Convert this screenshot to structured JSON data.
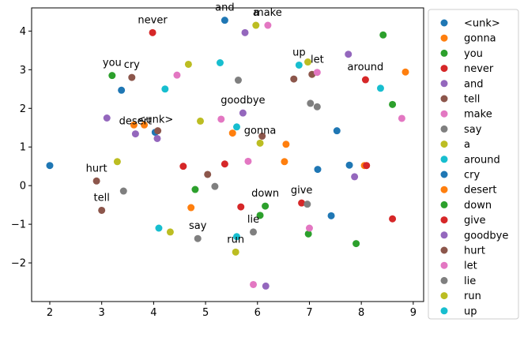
{
  "chart_data": {
    "type": "scatter",
    "title": "",
    "xlabel": "",
    "ylabel": "",
    "xlim": [
      1.65,
      9.2
    ],
    "ylim": [
      -3.0,
      4.6
    ],
    "xticks": [
      2,
      3,
      4,
      5,
      6,
      7,
      8,
      9
    ],
    "yticks": [
      -2,
      -1,
      0,
      1,
      2,
      3,
      4
    ],
    "grid": false,
    "legend_position": "outside-right",
    "series": [
      {
        "name": "<unk>",
        "color": "#1f77b4",
        "points": [
          [
            2.0,
            0.52
          ],
          [
            5.37,
            4.28
          ],
          [
            3.38,
            2.47
          ],
          [
            4.03,
            1.38
          ],
          [
            7.53,
            1.42
          ],
          [
            7.16,
            0.42
          ],
          [
            7.77,
            0.53
          ],
          [
            7.42,
            -0.78
          ]
        ]
      },
      {
        "name": "gonna",
        "color": "#ff7f0e",
        "points": [
          [
            3.62,
            1.57
          ],
          [
            3.82,
            1.57
          ],
          [
            5.52,
            1.36
          ],
          [
            6.55,
            1.07
          ],
          [
            6.52,
            0.62
          ],
          [
            8.85,
            2.94
          ],
          [
            8.06,
            0.52
          ],
          [
            4.72,
            -0.57
          ]
        ]
      },
      {
        "name": "you",
        "color": "#2ca02c",
        "points": [
          [
            3.2,
            2.85
          ],
          [
            8.42,
            3.9
          ],
          [
            8.6,
            2.1
          ],
          [
            4.8,
            -0.1
          ],
          [
            6.15,
            -0.53
          ],
          [
            6.05,
            -0.77
          ],
          [
            6.98,
            -1.25
          ],
          [
            7.9,
            -1.5
          ]
        ]
      },
      {
        "name": "never",
        "color": "#d62728",
        "points": [
          [
            3.98,
            3.96
          ],
          [
            8.08,
            2.74
          ],
          [
            4.57,
            0.5
          ],
          [
            5.37,
            0.56
          ],
          [
            8.1,
            0.52
          ],
          [
            5.68,
            -0.55
          ],
          [
            6.85,
            -0.45
          ],
          [
            8.6,
            -0.86
          ]
        ]
      },
      {
        "name": "and",
        "color": "#9467bd",
        "points": [
          [
            5.76,
            3.96
          ],
          [
            7.75,
            3.4
          ],
          [
            3.1,
            1.75
          ],
          [
            5.72,
            1.88
          ],
          [
            3.65,
            1.34
          ],
          [
            4.07,
            1.22
          ],
          [
            7.87,
            0.23
          ],
          [
            6.16,
            -2.6
          ]
        ]
      },
      {
        "name": "tell",
        "color": "#8c564b",
        "points": [
          [
            3.58,
            2.8
          ],
          [
            6.7,
            2.76
          ],
          [
            7.05,
            2.88
          ],
          [
            4.08,
            1.42
          ],
          [
            6.09,
            1.28
          ],
          [
            5.04,
            0.29
          ],
          [
            2.9,
            0.12
          ],
          [
            3.0,
            -0.64
          ]
        ]
      },
      {
        "name": "make",
        "color": "#e377c2",
        "points": [
          [
            6.2,
            4.15
          ],
          [
            4.45,
            2.86
          ],
          [
            7.15,
            2.93
          ],
          [
            5.3,
            1.72
          ],
          [
            8.78,
            1.74
          ],
          [
            5.82,
            0.63
          ],
          [
            7.0,
            -1.1
          ],
          [
            5.92,
            -2.56
          ]
        ]
      },
      {
        "name": "say",
        "color": "#7f7f7f",
        "points": [
          [
            5.63,
            2.73
          ],
          [
            7.02,
            2.13
          ],
          [
            7.15,
            2.04
          ],
          [
            5.18,
            -0.02
          ],
          [
            3.42,
            -0.14
          ],
          [
            6.96,
            -0.48
          ],
          [
            5.92,
            -1.2
          ],
          [
            4.85,
            -1.37
          ]
        ]
      },
      {
        "name": "a",
        "color": "#bcbd22",
        "points": [
          [
            5.97,
            4.15
          ],
          [
            4.67,
            3.14
          ],
          [
            6.97,
            3.2
          ],
          [
            4.9,
            1.67
          ],
          [
            6.05,
            1.1
          ],
          [
            3.3,
            0.62
          ],
          [
            4.32,
            -1.2
          ],
          [
            5.58,
            -1.72
          ]
        ]
      },
      {
        "name": "around",
        "color": "#17becf",
        "points": [
          [
            5.28,
            3.18
          ],
          [
            6.8,
            3.12
          ],
          [
            4.22,
            2.5
          ],
          [
            8.37,
            2.52
          ],
          [
            5.6,
            1.52
          ],
          [
            4.1,
            -1.1
          ],
          [
            5.6,
            -1.32
          ]
        ]
      }
    ],
    "annotations": [
      {
        "text": "never",
        "x": 3.98,
        "y": 3.96
      },
      {
        "text": "and",
        "x": 5.37,
        "y": 4.28
      },
      {
        "text": "a",
        "x": 5.97,
        "y": 4.15
      },
      {
        "text": "make",
        "x": 6.2,
        "y": 4.15
      },
      {
        "text": "you",
        "x": 3.2,
        "y": 2.85
      },
      {
        "text": "cry",
        "x": 3.58,
        "y": 2.8
      },
      {
        "text": "up",
        "x": 6.8,
        "y": 3.12
      },
      {
        "text": "let",
        "x": 7.15,
        "y": 2.93
      },
      {
        "text": "around",
        "x": 8.08,
        "y": 2.74
      },
      {
        "text": "goodbye",
        "x": 5.72,
        "y": 1.88
      },
      {
        "text": "desert",
        "x": 3.65,
        "y": 1.34
      },
      {
        "text": "<unk>",
        "x": 4.03,
        "y": 1.38
      },
      {
        "text": "gonna",
        "x": 6.05,
        "y": 1.1
      },
      {
        "text": "hurt",
        "x": 2.9,
        "y": 0.12
      },
      {
        "text": "tell",
        "x": 3.0,
        "y": -0.64
      },
      {
        "text": "down",
        "x": 6.15,
        "y": -0.53
      },
      {
        "text": "give",
        "x": 6.85,
        "y": -0.45
      },
      {
        "text": "lie",
        "x": 5.92,
        "y": -1.2
      },
      {
        "text": "say",
        "x": 4.85,
        "y": -1.37
      },
      {
        "text": "run",
        "x": 5.58,
        "y": -1.72
      }
    ],
    "legend": [
      {
        "label": "<unk>",
        "color": "#1f77b4"
      },
      {
        "label": "gonna",
        "color": "#ff7f0e"
      },
      {
        "label": "you",
        "color": "#2ca02c"
      },
      {
        "label": "never",
        "color": "#d62728"
      },
      {
        "label": "and",
        "color": "#9467bd"
      },
      {
        "label": "tell",
        "color": "#8c564b"
      },
      {
        "label": "make",
        "color": "#e377c2"
      },
      {
        "label": "say",
        "color": "#7f7f7f"
      },
      {
        "label": "a",
        "color": "#bcbd22"
      },
      {
        "label": "around",
        "color": "#17becf"
      },
      {
        "label": "cry",
        "color": "#1f77b4"
      },
      {
        "label": "desert",
        "color": "#ff7f0e"
      },
      {
        "label": "down",
        "color": "#2ca02c"
      },
      {
        "label": "give",
        "color": "#d62728"
      },
      {
        "label": "goodbye",
        "color": "#9467bd"
      },
      {
        "label": "hurt",
        "color": "#8c564b"
      },
      {
        "label": "let",
        "color": "#e377c2"
      },
      {
        "label": "lie",
        "color": "#7f7f7f"
      },
      {
        "label": "run",
        "color": "#bcbd22"
      },
      {
        "label": "up",
        "color": "#17becf"
      }
    ]
  }
}
